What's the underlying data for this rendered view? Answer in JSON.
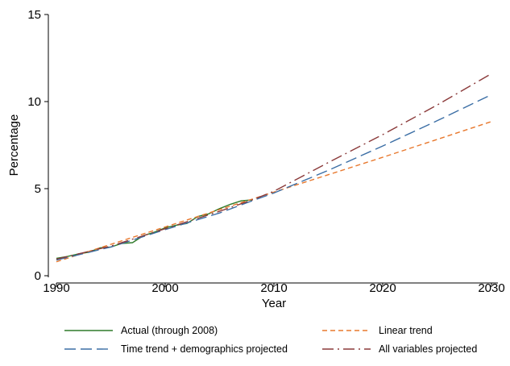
{
  "chart_data": {
    "type": "line",
    "xlabel": "Year",
    "ylabel": "Percentage",
    "xlim": [
      1990,
      2030
    ],
    "ylim": [
      0,
      15
    ],
    "xticks": [
      1990,
      2000,
      2010,
      2020,
      2030
    ],
    "yticks": [
      0,
      5,
      10,
      15
    ],
    "grid": false,
    "legend_position": "bottom",
    "series": [
      {
        "name": "Actual (through 2008)",
        "color": "#2f7a2a",
        "dash": "solid",
        "x": [
          1990,
          1991,
          1992,
          1993,
          1994,
          1995,
          1996,
          1997,
          1998,
          1999,
          2000,
          2001,
          2002,
          2003,
          2004,
          2005,
          2006,
          2007,
          2008
        ],
        "y": [
          1.0,
          1.1,
          1.25,
          1.35,
          1.6,
          1.65,
          1.85,
          1.9,
          2.3,
          2.5,
          2.75,
          2.9,
          3.0,
          3.4,
          3.55,
          3.85,
          4.1,
          4.3,
          4.35
        ]
      },
      {
        "name": "Linear trend",
        "color": "#e8782d",
        "dash": "short",
        "x": [
          1990,
          2000,
          2008,
          2010,
          2020,
          2030
        ],
        "y": [
          0.8,
          2.8,
          4.4,
          4.8,
          6.8,
          8.85
        ]
      },
      {
        "name": "Time trend + demographics projected",
        "color": "#3b6ea5",
        "dash": "long",
        "x": [
          1990,
          1995,
          2000,
          2005,
          2008,
          2010,
          2015,
          2020,
          2025,
          2030
        ],
        "y": [
          0.9,
          1.65,
          2.65,
          3.6,
          4.3,
          4.75,
          6.05,
          7.45,
          8.9,
          10.4
        ]
      },
      {
        "name": "All variables projected",
        "color": "#8b3a3a",
        "dash": "dashdot",
        "x": [
          1990,
          1995,
          2000,
          2005,
          2008,
          2010,
          2015,
          2020,
          2025,
          2030
        ],
        "y": [
          0.95,
          1.7,
          2.7,
          3.7,
          4.35,
          4.85,
          6.5,
          8.1,
          9.8,
          11.6
        ]
      }
    ]
  }
}
